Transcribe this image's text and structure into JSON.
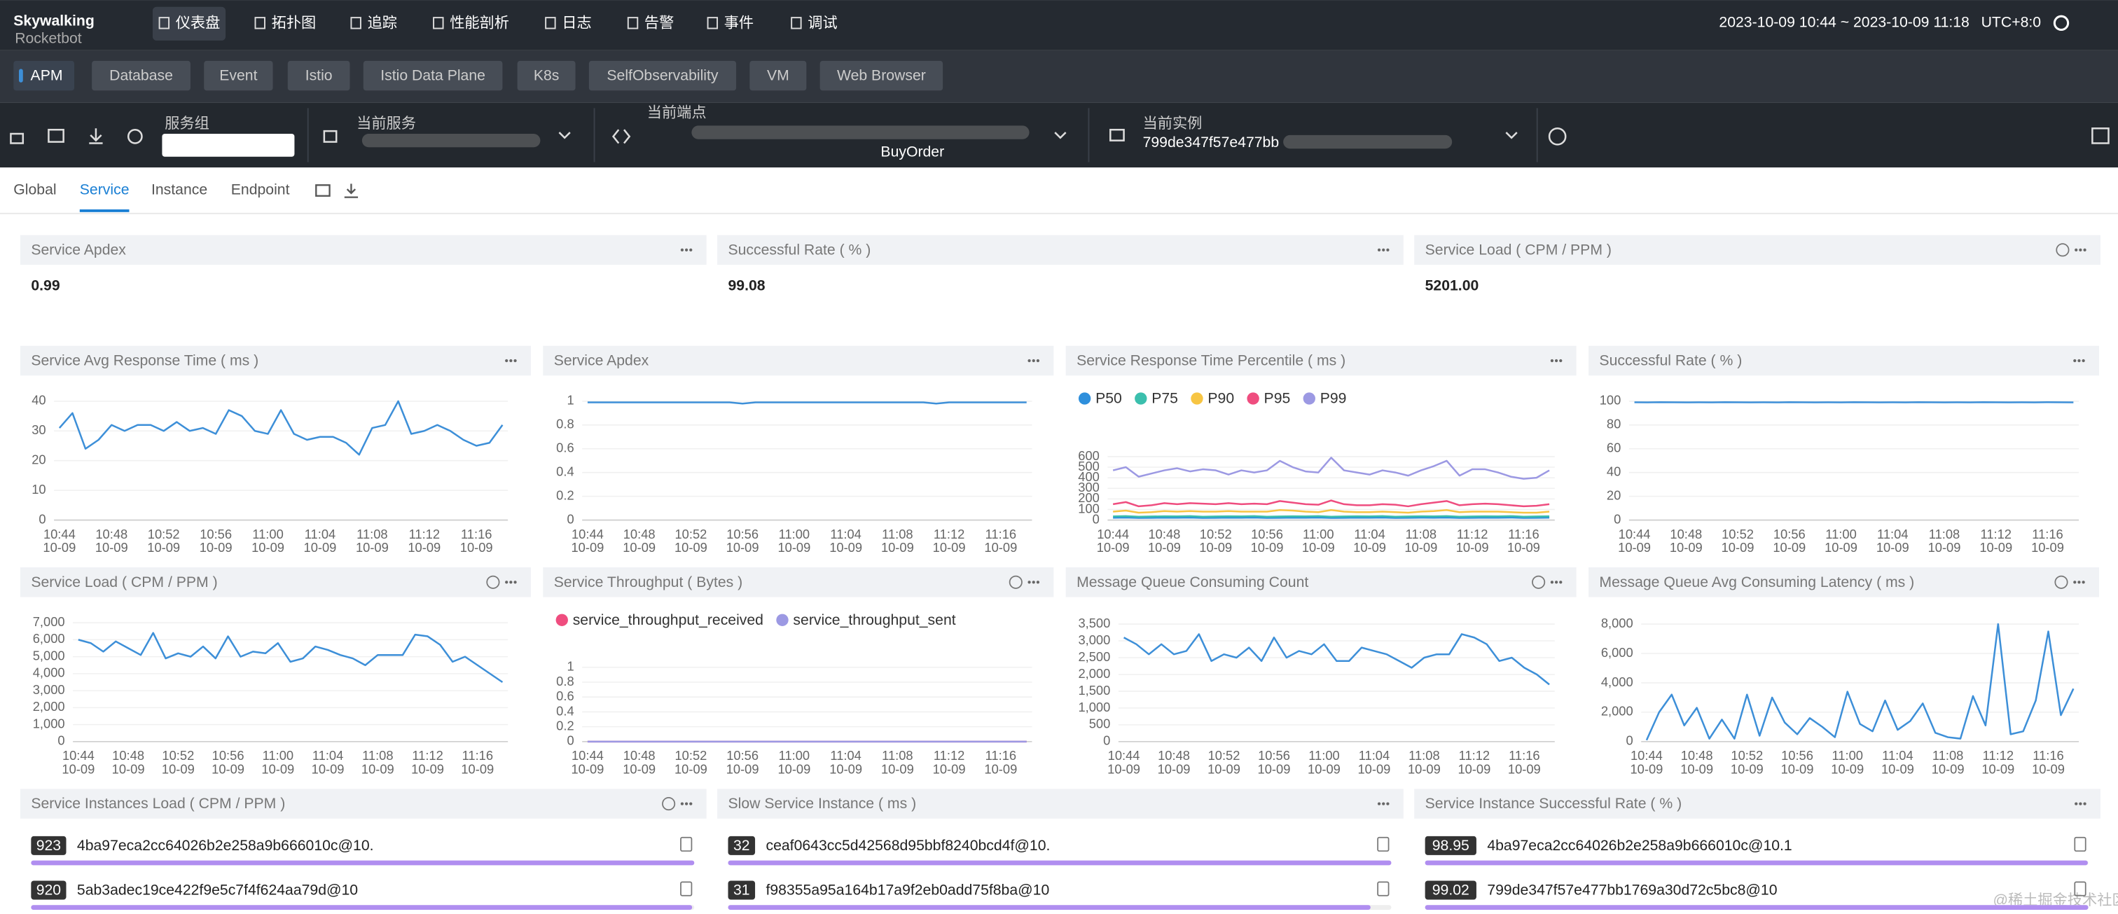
{
  "nav": {
    "logo": "Skywalking",
    "logo_sub": "Rocketbot",
    "menu": [
      "仪表盘",
      "拓扑图",
      "追踪",
      "性能剖析",
      "日志",
      "告警",
      "事件",
      "调试"
    ],
    "active_menu": 0,
    "time_range": "2023-10-09 10:44 ~ 2023-10-09 11:18",
    "timezone": "UTC+8:0"
  },
  "layers": {
    "items": [
      "APM",
      "Database",
      "Event",
      "Istio",
      "Istio Data Plane",
      "K8s",
      "SelfObservability",
      "VM",
      "Web Browser"
    ],
    "active": 0
  },
  "selectors": [
    {
      "label": "服务组"
    },
    {
      "label": "当前服务"
    },
    {
      "label": "当前端点",
      "value": "BuyOrder"
    },
    {
      "label": "当前实例",
      "value": "799de347f57e477bb"
    }
  ],
  "tabs": {
    "items": [
      "Global",
      "Service",
      "Instance",
      "Endpoint"
    ],
    "active": 1
  },
  "cards": [
    {
      "title": "Service Apdex",
      "value": 0.99
    },
    {
      "title": "Successful Rate ( % )",
      "value": 99.08
    },
    {
      "title": "Service Load ( CPM / PPM )",
      "value": 5201,
      "label": "5201.00"
    }
  ],
  "charts": {
    "categories": [
      "10:44\n10-09",
      null,
      null,
      null,
      "10:48\n10-09",
      null,
      null,
      null,
      "10:52\n10-09",
      null,
      null,
      null,
      "10:56\n10-09",
      null,
      null,
      null,
      "11:00\n10-09",
      null,
      null,
      null,
      "11:04\n10-09",
      null,
      null,
      null,
      "11:08\n10-09",
      null,
      null,
      null,
      "11:12\n10-09",
      null,
      null,
      null,
      "11:16\n10-09",
      null,
      null
    ],
    "panels": [
      {
        "type": "line",
        "title": "Service Avg Response Time ( ms )",
        "ylim": [
          0,
          40
        ],
        "yticks": [
          0,
          10,
          20,
          30,
          40
        ],
        "grid": true,
        "series": [
          {
            "color": "#3d8fd8",
            "values": [
              31,
              36,
              24,
              27,
              32,
              30,
              32,
              32,
              30,
              33,
              30,
              31,
              29,
              37,
              35,
              30,
              29,
              37,
              29,
              27,
              28,
              28,
              26,
              22,
              31,
              32,
              40,
              29,
              30,
              32,
              30,
              27,
              25,
              26,
              32
            ]
          }
        ]
      },
      {
        "type": "line",
        "title": "Service Apdex",
        "ylim": [
          0,
          1
        ],
        "yticks": [
          0,
          0.2,
          0.4,
          0.6,
          0.8,
          1
        ],
        "grid": true,
        "series": [
          {
            "color": "#3d8fd8",
            "values": [
              0.99,
              0.99,
              0.99,
              0.99,
              0.99,
              0.99,
              0.99,
              0.99,
              0.99,
              0.99,
              0.99,
              0.99,
              0.98,
              0.99,
              0.99,
              0.99,
              0.99,
              0.99,
              0.99,
              0.99,
              0.99,
              0.99,
              0.99,
              0.99,
              0.99,
              0.99,
              0.99,
              0.98,
              0.99,
              0.99,
              0.99,
              0.99,
              0.99,
              0.99,
              0.99
            ]
          }
        ]
      },
      {
        "type": "line",
        "title": "Service Response Time Percentile ( ms )",
        "ylim": [
          0,
          600
        ],
        "yticks": [
          0,
          100,
          200,
          300,
          400,
          500,
          600
        ],
        "grid": true,
        "series": [
          {
            "name": "P50",
            "color": "#2e8fdc",
            "values": [
              22,
              24,
              20,
              21,
              23,
              22,
              24,
              20,
              21,
              23,
              22,
              24,
              20,
              21,
              23,
              22,
              24,
              20,
              21,
              23,
              22,
              24,
              20,
              21,
              23,
              22,
              24,
              20,
              21,
              23,
              22,
              24,
              20,
              21,
              23
            ]
          },
          {
            "name": "P75",
            "color": "#3bbfad",
            "values": [
              35,
              38,
              32,
              34,
              36,
              35,
              38,
              32,
              34,
              36,
              35,
              38,
              32,
              34,
              36,
              35,
              38,
              32,
              34,
              36,
              35,
              38,
              32,
              34,
              36,
              35,
              38,
              32,
              34,
              36,
              35,
              38,
              32,
              34,
              36
            ]
          },
          {
            "name": "P90",
            "color": "#f7c543",
            "values": [
              80,
              90,
              70,
              75,
              85,
              80,
              85,
              80,
              80,
              85,
              80,
              80,
              80,
              95,
              90,
              80,
              75,
              95,
              80,
              75,
              75,
              80,
              75,
              70,
              80,
              85,
              95,
              75,
              80,
              80,
              80,
              75,
              70,
              70,
              80
            ]
          },
          {
            "name": "P95",
            "color": "#ef4d7f",
            "values": [
              150,
              170,
              130,
              140,
              160,
              150,
              160,
              155,
              150,
              160,
              150,
              155,
              150,
              180,
              165,
              150,
              145,
              185,
              150,
              140,
              140,
              150,
              145,
              130,
              150,
              165,
              180,
              140,
              150,
              155,
              150,
              140,
              130,
              135,
              150
            ]
          },
          {
            "name": "P99",
            "color": "#9c99e3",
            "values": [
              470,
              500,
              410,
              440,
              470,
              490,
              460,
              480,
              470,
              430,
              470,
              450,
              470,
              560,
              500,
              460,
              450,
              590,
              470,
              450,
              430,
              470,
              450,
              420,
              470,
              510,
              560,
              420,
              480,
              480,
              450,
              410,
              390,
              400,
              470
            ]
          }
        ]
      },
      {
        "type": "line",
        "title": "Successful Rate ( % )",
        "ylim": [
          0,
          100
        ],
        "yticks": [
          0,
          20,
          40,
          60,
          80,
          100
        ],
        "grid": true,
        "series": [
          {
            "color": "#3d8fd8",
            "values": [
              99.1,
              99.0,
              99.2,
              99.1,
              99.0,
              99.1,
              99.0,
              99.2,
              99.1,
              99.0,
              99.1,
              99.0,
              99.2,
              99.1,
              99.0,
              99.1,
              99.0,
              99.2,
              99.1,
              99.0,
              99.1,
              99.0,
              99.2,
              99.1,
              99.0,
              99.1,
              99.0,
              99.2,
              99.1,
              99.0,
              99.1,
              99.0,
              99.2,
              99.1,
              99.0
            ]
          }
        ]
      },
      {
        "type": "line",
        "title": "Service Load ( CPM / PPM )",
        "ylim": [
          0,
          7000
        ],
        "grid": true,
        "yticks": [
          0,
          {
            "value": 1000,
            "label": "1,000"
          },
          {
            "value": 2000,
            "label": "2,000"
          },
          {
            "value": 3000,
            "label": "3,000"
          },
          {
            "value": 4000,
            "label": "4,000"
          },
          {
            "value": 5000,
            "label": "5,000"
          },
          {
            "value": 6000,
            "label": "6,000"
          },
          {
            "value": 7000,
            "label": "7,000"
          }
        ],
        "series": [
          {
            "color": "#3d8fd8",
            "values": [
              6000,
              5800,
              5300,
              5900,
              5500,
              5100,
              6400,
              4900,
              5200,
              5000,
              5600,
              4900,
              6200,
              5000,
              5300,
              5200,
              5800,
              4700,
              4900,
              5600,
              5400,
              5100,
              4900,
              4500,
              5100,
              5100,
              5100,
              6300,
              6200,
              5700,
              4700,
              5000,
              4500,
              4000,
              3500
            ]
          }
        ]
      },
      {
        "type": "line",
        "title": "Service Throughput ( Bytes )",
        "ylim": [
          0,
          1
        ],
        "yticks": [
          0,
          0.2,
          0.4,
          0.6,
          0.8,
          1
        ],
        "grid": true,
        "series": [
          {
            "name": "service_throughput_received",
            "color": "#ef4d7f",
            "values": [
              0,
              0,
              0,
              0,
              0,
              0,
              0,
              0,
              0,
              0,
              0,
              0,
              0,
              0,
              0,
              0,
              0,
              0,
              0,
              0,
              0,
              0,
              0,
              0,
              0,
              0,
              0,
              0,
              0,
              0,
              0,
              0,
              0,
              0,
              0
            ]
          },
          {
            "name": "service_throughput_sent",
            "color": "#9c99e3",
            "values": [
              0,
              0,
              0,
              0,
              0,
              0,
              0,
              0,
              0,
              0,
              0,
              0,
              0,
              0,
              0,
              0,
              0,
              0,
              0,
              0,
              0,
              0,
              0,
              0,
              0,
              0,
              0,
              0,
              0,
              0,
              0,
              0,
              0,
              0,
              0
            ]
          }
        ]
      },
      {
        "type": "line",
        "title": "Message Queue Consuming Count",
        "ylim": [
          0,
          3500
        ],
        "grid": true,
        "yticks": [
          0,
          500,
          {
            "value": 1000,
            "label": "1,000"
          },
          {
            "value": 1500,
            "label": "1,500"
          },
          {
            "value": 2000,
            "label": "2,000"
          },
          {
            "value": 2500,
            "label": "2,500"
          },
          {
            "value": 3000,
            "label": "3,000"
          },
          {
            "value": 3500,
            "label": "3,500"
          }
        ],
        "series": [
          {
            "color": "#3d8fd8",
            "values": [
              3100,
              2900,
              2600,
              2900,
              2600,
              2700,
              3200,
              2400,
              2600,
              2500,
              2800,
              2400,
              3100,
              2500,
              2700,
              2600,
              2900,
              2400,
              2400,
              2800,
              2700,
              2600,
              2400,
              2200,
              2500,
              2600,
              2600,
              3200,
              3100,
              2900,
              2400,
              2500,
              2200,
              2000,
              1700
            ]
          }
        ]
      },
      {
        "type": "line",
        "title": "Message Queue Avg Consuming Latency ( ms )",
        "ylim": [
          0,
          8000
        ],
        "grid": true,
        "yticks": [
          0,
          {
            "value": 2000,
            "label": "2,000"
          },
          {
            "value": 4000,
            "label": "4,000"
          },
          {
            "value": 6000,
            "label": "6,000"
          },
          {
            "value": 8000,
            "label": "8,000"
          }
        ],
        "series": [
          {
            "color": "#3d8fd8",
            "values": [
              100,
              2000,
              3200,
              1100,
              2300,
              200,
              1500,
              200,
              3200,
              400,
              3000,
              1300,
              500,
              1600,
              1000,
              300,
              3400,
              1200,
              700,
              2800,
              800,
              1400,
              2600,
              600,
              300,
              200,
              3100,
              1100,
              8000,
              500,
              700,
              2800,
              7500,
              1800,
              3600
            ]
          }
        ]
      }
    ]
  },
  "lists": [
    {
      "title": "Service Instances Load ( CPM / PPM )",
      "items": [
        {
          "value": 923,
          "name": "4ba97eca2cc64026b2e258a9b666010c@10."
        },
        {
          "value": 920,
          "name": "5ab3adec19ce422f9e5c7f4f624aa79d@10"
        }
      ]
    },
    {
      "title": "Slow Service Instance ( ms )",
      "items": [
        {
          "value": 32,
          "name": "ceaf0643cc5d42568d95bbf8240bcd4f@10."
        },
        {
          "value": 31,
          "name": "f98355a95a164b17a9f2eb0add75f8ba@10"
        }
      ]
    },
    {
      "title": "Service Instance Successful Rate ( % )",
      "items": [
        {
          "value": 98.95,
          "name": "4ba97eca2cc64026b2e258a9b666010c@10.1"
        },
        {
          "value": 99.02,
          "name": "799de347f57e477bb1769a30d72c5bc8@10"
        }
      ]
    }
  ],
  "watermark": "@稀土掘金技术社区"
}
